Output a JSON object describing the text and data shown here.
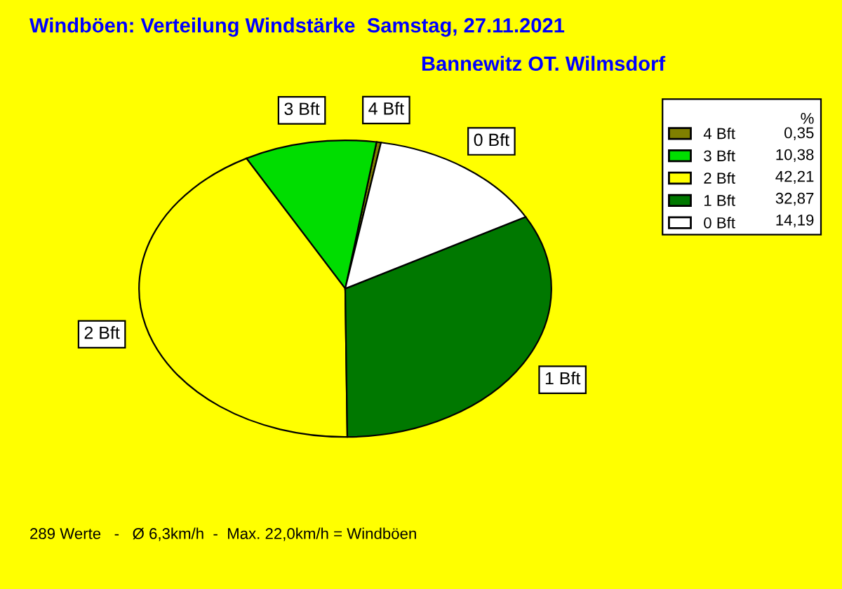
{
  "chart_data": {
    "type": "pie",
    "title": "Windböen: Verteilung Windstärke  Samstag, 27.11.2021",
    "subtitle": "Bannewitz OT. Wilmsdorf",
    "categories": [
      "4 Bft",
      "3 Bft",
      "2 Bft",
      "1 Bft",
      "0 Bft"
    ],
    "values": [
      0.35,
      10.38,
      42.21,
      32.87,
      14.19
    ],
    "value_labels": [
      "0,35",
      "10,38",
      "42,21",
      "32,87",
      "14,19"
    ],
    "colors": [
      "#808000",
      "#00dd00",
      "#ffff00",
      "#007800",
      "#ffffff"
    ],
    "legend": "top right",
    "legend_title": "%",
    "annotations": [
      "289 Werte   -   Ø 6,3km/h  -  Max. 22,0km/h = Windböen"
    ]
  }
}
